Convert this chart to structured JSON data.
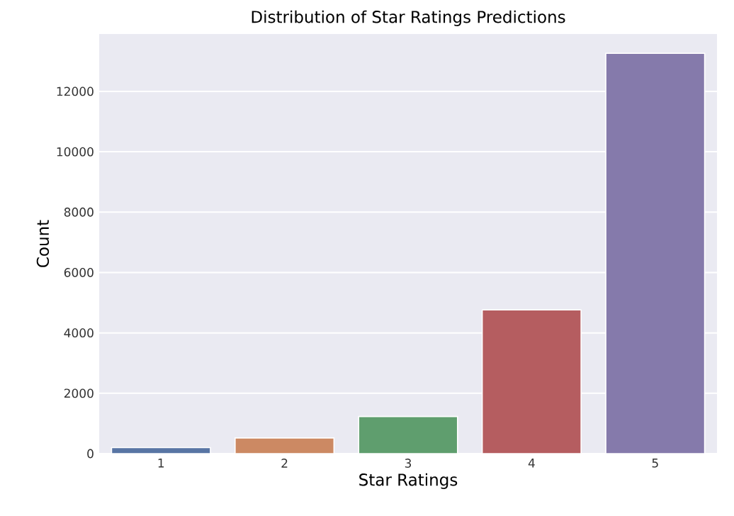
{
  "chart_data": {
    "type": "bar",
    "title": "Distribution of Star Ratings Predictions",
    "xlabel": "Star Ratings",
    "ylabel": "Count",
    "categories": [
      "1",
      "2",
      "3",
      "4",
      "5"
    ],
    "values": [
      200,
      520,
      1230,
      4760,
      13260
    ],
    "colors": [
      "#5875a4",
      "#cc8963",
      "#5f9e6e",
      "#b55d60",
      "#857aab"
    ],
    "ylim": [
      0,
      13900
    ],
    "yticks": [
      0,
      2000,
      4000,
      6000,
      8000,
      10000,
      12000
    ],
    "grid": "y"
  }
}
